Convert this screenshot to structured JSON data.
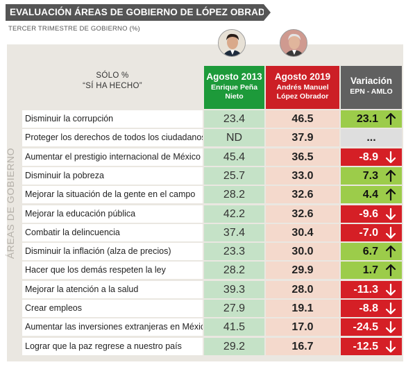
{
  "title": "EVALUACIÓN ÁREAS DE GOBIERNO DE LÓPEZ OBRADOR",
  "subtitle": "TERCER TRIMESTRE DE GOBIERNO (%)",
  "side_label": "ÁREAS DE GOBIERNO",
  "question_header": {
    "line1": "SÓLO %",
    "line2": "“SÍ HA HECHO”"
  },
  "columns": {
    "epn": {
      "year": "Agosto 2013",
      "name": "Enrique Peña Nieto"
    },
    "amlo": {
      "year": "Agosto 2019",
      "name": "Andrés Manuel López Obrador"
    },
    "variation": {
      "title": "Variación",
      "sub": "EPN - AMLO"
    }
  },
  "colors": {
    "epn": "#1d9a3a",
    "amlo": "#cc1f26",
    "variation": "#606060",
    "up": "#9ccc4a",
    "down": "#d51f26"
  },
  "chart_data": {
    "type": "table",
    "categories": [
      "Disminuir la corrupción",
      "Proteger los derechos de todos los ciudadanos",
      "Aumentar el prestigio internacional de México",
      "Disminuir la pobreza",
      "Mejorar la situación de la gente en el campo",
      "Mejorar la educación pública",
      "Combatir la delincuencia",
      "Disminuir la inflación (alza de precios)",
      "Hacer que los demás respeten la ley",
      "Mejorar la atención a la salud",
      "Crear empleos",
      "Aumentar las inversiones extranjeras en México",
      "Lograr que la paz regrese a nuestro país"
    ],
    "series": [
      {
        "name": "Agosto 2013",
        "values": [
          "23.4",
          "ND",
          "45.4",
          "25.7",
          "28.2",
          "42.2",
          "37.4",
          "23.3",
          "28.2",
          "39.3",
          "27.9",
          "41.5",
          "29.2"
        ]
      },
      {
        "name": "Agosto 2019",
        "values": [
          "46.5",
          "37.9",
          "36.5",
          "33.0",
          "32.6",
          "32.6",
          "30.4",
          "30.0",
          "29.9",
          "28.0",
          "19.1",
          "17.0",
          "16.7"
        ]
      },
      {
        "name": "Variación",
        "values": [
          "23.1",
          "...",
          "-8.9",
          "7.3",
          "4.4",
          "-9.6",
          "-7.0",
          "6.7",
          "1.7",
          "-11.3",
          "-8.8",
          "-24.5",
          "-12.5"
        ]
      }
    ]
  }
}
